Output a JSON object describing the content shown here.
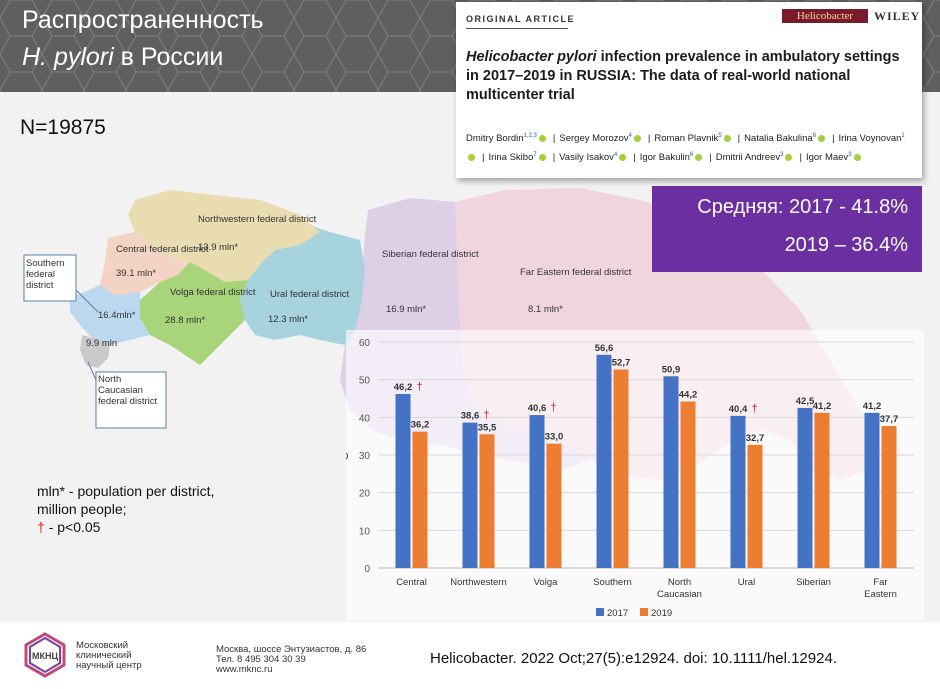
{
  "header": {
    "title_line1": "Распространенность",
    "title_line2_italic": "H. pylori",
    "title_line2_rest": "в России"
  },
  "sample": {
    "label": "N=19875"
  },
  "article": {
    "kicker": "ORIGINAL ARTICLE",
    "journal_logo": "Helicobacter",
    "publisher": "WILEY",
    "title_italic": "Helicobacter pylori",
    "title_rest": "infection prevalence in ambulatory settings in 2017–2019 in RUSSIA: The data of real-world national multicenter trial",
    "authors": [
      {
        "name": "Dmitry Bordin",
        "aff": "1,2,3"
      },
      {
        "name": "Sergey Morozov",
        "aff": "4"
      },
      {
        "name": "Roman Plavnik",
        "aff": "5"
      },
      {
        "name": "Natalia Bakulina",
        "aff": "6"
      },
      {
        "name": "Irina Voynovan",
        "aff": "1"
      },
      {
        "name": "Irina Skibo",
        "aff": "7"
      },
      {
        "name": "Vasily Isakov",
        "aff": "4"
      },
      {
        "name": "Igor Bakulin",
        "aff": "6"
      },
      {
        "name": "Dmitrii Andreev",
        "aff": "3"
      },
      {
        "name": "Igor Maev",
        "aff": "3"
      }
    ]
  },
  "average_box": {
    "line1": "Средняя: 2017 - 41.8%",
    "line2": "2019 – 36.4%",
    "color": "#6b2fa2"
  },
  "map": {
    "districts": [
      {
        "name": "Northwestern federal district",
        "pop": "13.9 mln*",
        "color": "#e8dcb0"
      },
      {
        "name": "Central federal district",
        "pop": "39.1 mln*",
        "color": "#f3d3c4"
      },
      {
        "name": "Volga federal district",
        "pop": "28.8 mln*",
        "color": "#a8d47a"
      },
      {
        "name": "Ural federal district",
        "pop": "12.3 mln*",
        "color": "#a7d3df"
      },
      {
        "name": "Siberian federal district",
        "pop": "16.9 mln*",
        "color": "#ddd0e6"
      },
      {
        "name": "Far Eastern federal district",
        "pop": "8.1 mln*",
        "color": "#f0d6dc"
      },
      {
        "name": "Southern federal district",
        "pop": "16.4mln*",
        "color": "#bcd8ee"
      },
      {
        "name": "North Caucasian federal district",
        "pop": "9.9 mln",
        "color": "#c9c9c9"
      }
    ]
  },
  "legend": {
    "line1": "mln* - population per district, million people;",
    "dagger": "†",
    "line2": "- p<0.05"
  },
  "chart_data": {
    "type": "bar",
    "categories": [
      "Central",
      "Northwestern",
      "Volga",
      "Southern",
      "North Caucasian",
      "Ural",
      "Siberian",
      "Far Eastern"
    ],
    "series": [
      {
        "name": "2017",
        "values": [
          46.2,
          38.6,
          40.6,
          56.6,
          50.9,
          40.4,
          42.5,
          41.2
        ],
        "color": "#4472c4"
      },
      {
        "name": "2019",
        "values": [
          36.2,
          35.5,
          33.0,
          52.7,
          44.2,
          32.7,
          41.2,
          37.7
        ],
        "color": "#ed7d31"
      }
    ],
    "value_labels_2017": [
      "46,2",
      "38,6",
      "40,6",
      "56,6",
      "50,9",
      "40,4",
      "42,5",
      "41,2"
    ],
    "value_labels_2019": [
      "36,2",
      "35,5",
      "33,0",
      "52,7",
      "44,2",
      "32,7",
      "41,2",
      "37,7"
    ],
    "significant": [
      true,
      true,
      true,
      false,
      false,
      true,
      false,
      false
    ],
    "significance_mark": "†",
    "ylabel": "%",
    "ylim": [
      0,
      60
    ],
    "yticks": [
      "0",
      "10",
      "20",
      "30",
      "40",
      "50",
      "60"
    ],
    "grid": true,
    "legend_position": "bottom"
  },
  "footer": {
    "org_abbr": "МКНЦ",
    "org_name": [
      "Московский",
      "клинический",
      "научный центр"
    ],
    "address": [
      "Москва, шоссе Энтузиастов, д. 86",
      "Тел. 8 495 304 30 39",
      "www.mknc.ru"
    ],
    "citation": "Helicobacter. 2022 Oct;27(5):e12924. doi: 10.1111/hel.12924."
  }
}
